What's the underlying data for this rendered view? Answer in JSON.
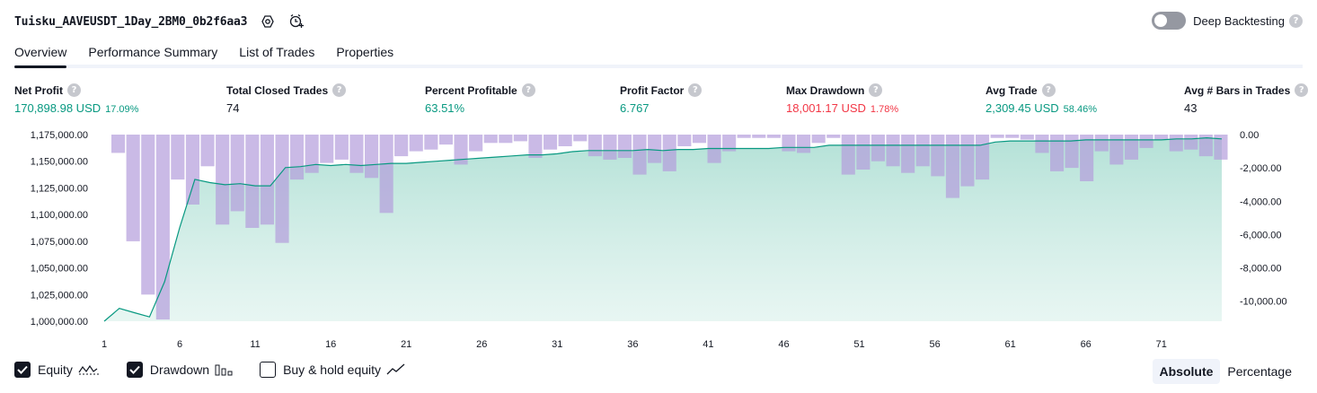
{
  "header": {
    "strategy_name": "Tuisku_AAVEUSDT_1Day_2BM0_0b2f6aa3",
    "settings_icon": "gear-icon",
    "alert_icon": "add-alert-icon",
    "deep_backtesting_label": "Deep Backtesting",
    "deep_backtesting_enabled": false
  },
  "tabs": [
    "Overview",
    "Performance Summary",
    "List of Trades",
    "Properties"
  ],
  "active_tab": "Overview",
  "stats": [
    {
      "label": "Net Profit",
      "value": "170,898.98 USD",
      "pct": "17.09%",
      "color": "#089981"
    },
    {
      "label": "Total Closed Trades",
      "value": "74",
      "pct": "",
      "color": "#131722"
    },
    {
      "label": "Percent Profitable",
      "value": "63.51%",
      "pct": "",
      "color": "#089981"
    },
    {
      "label": "Profit Factor",
      "value": "6.767",
      "pct": "",
      "color": "#089981"
    },
    {
      "label": "Max Drawdown",
      "value": "18,001.17 USD",
      "pct": "1.78%",
      "color": "#f23645"
    },
    {
      "label": "Avg Trade",
      "value": "2,309.45 USD",
      "pct": "58.46%",
      "color": "#089981"
    },
    {
      "label": "Avg # Bars in Trades",
      "value": "43",
      "pct": "",
      "color": "#131722"
    }
  ],
  "info_icon": "?",
  "chart_data": {
    "type": "area",
    "x_ticks": [
      "1",
      "6",
      "11",
      "16",
      "21",
      "26",
      "31",
      "36",
      "41",
      "46",
      "51",
      "56",
      "61",
      "66",
      "71"
    ],
    "left_axis": {
      "ticks": [
        "1,175,000.00",
        "1,150,000.00",
        "1,125,000.00",
        "1,100,000.00",
        "1,075,000.00",
        "1,050,000.00",
        "1,025,000.00",
        "1,000,000.00"
      ],
      "range": [
        1000000,
        1175000
      ]
    },
    "right_axis": {
      "ticks": [
        "0.00",
        "-2,000.00",
        "-4,000.00",
        "-6,000.00",
        "-8,000.00",
        "-10,000.00"
      ],
      "range": [
        -11200,
        0
      ]
    },
    "series": [
      {
        "name": "Equity",
        "color": "#089981",
        "type": "area",
        "x": [
          1,
          2,
          3,
          4,
          5,
          6,
          7,
          8,
          9,
          10,
          11,
          12,
          13,
          14,
          15,
          16,
          17,
          18,
          19,
          20,
          21,
          22,
          23,
          24,
          25,
          26,
          27,
          28,
          29,
          30,
          31,
          32,
          33,
          34,
          35,
          36,
          37,
          38,
          39,
          40,
          41,
          42,
          43,
          44,
          45,
          46,
          47,
          48,
          49,
          50,
          51,
          52,
          53,
          54,
          55,
          56,
          57,
          58,
          59,
          60,
          61,
          62,
          63,
          64,
          65,
          66,
          67,
          68,
          69,
          70,
          71,
          72,
          73,
          74,
          75
        ],
        "values": [
          1000000,
          1012000,
          1008000,
          1004000,
          1037000,
          1088000,
          1133000,
          1130000,
          1128000,
          1129000,
          1127000,
          1127000,
          1144000,
          1145000,
          1147000,
          1146000,
          1147000,
          1146000,
          1147000,
          1148000,
          1148000,
          1149000,
          1150000,
          1151000,
          1152000,
          1153000,
          1154000,
          1155000,
          1156000,
          1156000,
          1157000,
          1159000,
          1160000,
          1160000,
          1160000,
          1160000,
          1161000,
          1160000,
          1161000,
          1161000,
          1162000,
          1162000,
          1162000,
          1162000,
          1162000,
          1163000,
          1163000,
          1163000,
          1165000,
          1165000,
          1165000,
          1165000,
          1165000,
          1165000,
          1165000,
          1165000,
          1165000,
          1165000,
          1165000,
          1168000,
          1169000,
          1169000,
          1169000,
          1169000,
          1169000,
          1170000,
          1170000,
          1170000,
          1170000,
          1170000,
          1170000,
          1171000,
          1171000,
          1172000,
          1171000
        ]
      },
      {
        "name": "Drawdown",
        "color": "#b39ddb",
        "type": "bar",
        "values": [
          -1100,
          -6400,
          -9600,
          -11100,
          -2700,
          -4200,
          -1900,
          -5400,
          -4600,
          -5600,
          -5400,
          -6500,
          -2700,
          -2300,
          -1700,
          -1500,
          -2300,
          -2600,
          -4700,
          -1300,
          -1000,
          -900,
          -600,
          -1800,
          -1000,
          -500,
          -500,
          -400,
          -1400,
          -900,
          -700,
          -400,
          -1300,
          -1500,
          -1400,
          -2400,
          -1700,
          -2200,
          -700,
          -500,
          -1700,
          -1000,
          -200,
          -200,
          -200,
          -1000,
          -1100,
          -500,
          -200,
          -2400,
          -2100,
          -1600,
          -1900,
          -2300,
          -1900,
          -2500,
          -3800,
          -3100,
          -2700,
          -200,
          -200,
          -300,
          -1100,
          -2200,
          -2000,
          -2800,
          -1000,
          -1800,
          -1500,
          -800,
          -300,
          -1000,
          -900,
          -1300,
          -1500
        ]
      }
    ]
  },
  "legend": [
    {
      "label": "Equity",
      "checked": true,
      "icon": "equity-wave-icon"
    },
    {
      "label": "Drawdown",
      "checked": true,
      "icon": "bar-chart-icon"
    },
    {
      "label": "Buy & hold equity",
      "checked": false,
      "icon": "line-chart-icon"
    }
  ],
  "modes": [
    {
      "label": "Absolute",
      "active": true
    },
    {
      "label": "Percentage",
      "active": false
    }
  ]
}
